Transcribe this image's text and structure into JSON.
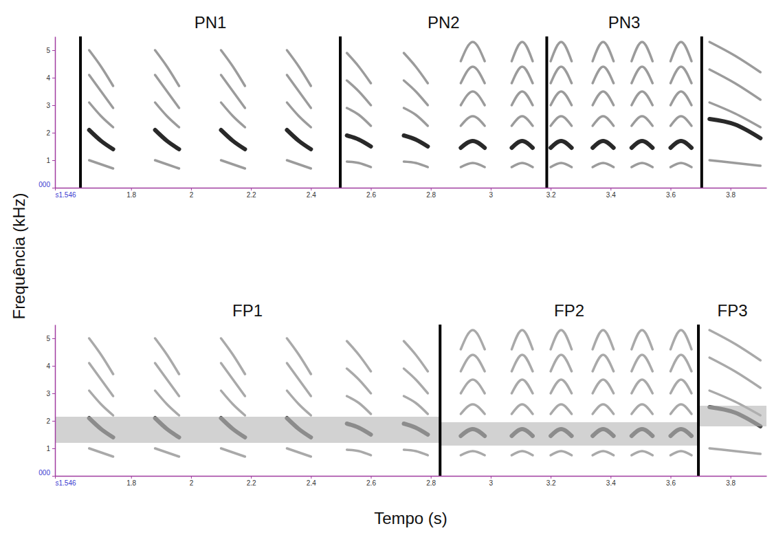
{
  "xlabel": "Tempo (s)",
  "ylabel": "Frequência (kHz)",
  "chart_data": [
    {
      "type": "spectrogram",
      "xlim": [
        1.546,
        3.92
      ],
      "ylim": [
        0,
        5.5
      ],
      "xticks": [
        {
          "value": 1.546,
          "label": "s1.546"
        },
        1.8,
        2,
        2.2,
        2.4,
        2.6,
        2.8,
        3,
        3.2,
        3.4,
        3.6,
        3.8
      ],
      "yticks": [
        {
          "value": 0,
          "label": "000"
        },
        1,
        2,
        3,
        4,
        5
      ],
      "lines": [
        1.631,
        2.498,
        3.187,
        3.704
      ],
      "segments": [
        {
          "label": "PN1",
          "start": 1.631,
          "end": 2.498
        },
        {
          "label": "PN2",
          "start": 2.498,
          "end": 3.187
        },
        {
          "label": "PN3",
          "start": 3.187,
          "end": 3.704
        }
      ],
      "notes": [
        {
          "t": [
            1.66,
            1.74
          ],
          "harmonics": [
            [
              1.0,
              0.85,
              0.7
            ],
            [
              2.1,
              1.7,
              1.4
            ],
            [
              3.1,
              2.6,
              2.2
            ],
            [
              4.1,
              3.5,
              2.9
            ],
            [
              5.0,
              4.4,
              3.7
            ]
          ]
        },
        {
          "t": [
            1.88,
            1.96
          ],
          "harmonics": [
            [
              1.0,
              0.85,
              0.7
            ],
            [
              2.1,
              1.7,
              1.4
            ],
            [
              3.1,
              2.6,
              2.2
            ],
            [
              4.1,
              3.5,
              2.9
            ],
            [
              5.0,
              4.4,
              3.7
            ]
          ]
        },
        {
          "t": [
            2.1,
            2.18
          ],
          "harmonics": [
            [
              1.0,
              0.85,
              0.7
            ],
            [
              2.1,
              1.7,
              1.4
            ],
            [
              3.1,
              2.6,
              2.2
            ],
            [
              4.1,
              3.5,
              2.9
            ],
            [
              5.0,
              4.4,
              3.7
            ]
          ]
        },
        {
          "t": [
            2.32,
            2.4
          ],
          "harmonics": [
            [
              1.0,
              0.85,
              0.7
            ],
            [
              2.1,
              1.7,
              1.4
            ],
            [
              3.1,
              2.6,
              2.2
            ],
            [
              4.1,
              3.5,
              2.9
            ],
            [
              5.0,
              4.4,
              3.7
            ]
          ]
        },
        {
          "t": [
            2.52,
            2.6
          ],
          "harmonics": [
            [
              0.95,
              0.9,
              0.75
            ],
            [
              1.9,
              1.75,
              1.5
            ],
            [
              2.9,
              2.65,
              2.25
            ],
            [
              3.9,
              3.5,
              3.0
            ],
            [
              4.9,
              4.4,
              3.8
            ]
          ]
        },
        {
          "t": [
            2.71,
            2.79
          ],
          "harmonics": [
            [
              0.95,
              0.9,
              0.75
            ],
            [
              1.9,
              1.75,
              1.5
            ],
            [
              2.9,
              2.65,
              2.25
            ],
            [
              3.9,
              3.5,
              3.0
            ],
            [
              4.9,
              4.4,
              3.8
            ]
          ]
        },
        {
          "t": [
            2.9,
            2.98
          ],
          "harmonics": [
            [
              0.75,
              0.9,
              0.75
            ],
            [
              1.45,
              1.7,
              1.45
            ],
            [
              2.25,
              2.6,
              2.25
            ],
            [
              3.0,
              3.5,
              3.0
            ],
            [
              3.8,
              4.4,
              3.8
            ],
            [
              4.6,
              5.3,
              4.6
            ]
          ]
        },
        {
          "t": [
            3.07,
            3.14
          ],
          "harmonics": [
            [
              0.75,
              0.9,
              0.75
            ],
            [
              1.45,
              1.7,
              1.45
            ],
            [
              2.25,
              2.6,
              2.25
            ],
            [
              3.0,
              3.5,
              3.0
            ],
            [
              3.8,
              4.4,
              3.8
            ],
            [
              4.6,
              5.3,
              4.6
            ]
          ]
        },
        {
          "t": [
            3.2,
            3.27
          ],
          "harmonics": [
            [
              0.75,
              0.9,
              0.75
            ],
            [
              1.45,
              1.7,
              1.45
            ],
            [
              2.25,
              2.6,
              2.25
            ],
            [
              3.0,
              3.5,
              3.0
            ],
            [
              3.8,
              4.4,
              3.8
            ],
            [
              4.6,
              5.3,
              4.6
            ]
          ]
        },
        {
          "t": [
            3.34,
            3.41
          ],
          "harmonics": [
            [
              0.75,
              0.9,
              0.75
            ],
            [
              1.45,
              1.7,
              1.45
            ],
            [
              2.25,
              2.6,
              2.25
            ],
            [
              3.0,
              3.5,
              3.0
            ],
            [
              3.8,
              4.4,
              3.8
            ],
            [
              4.6,
              5.3,
              4.6
            ]
          ]
        },
        {
          "t": [
            3.47,
            3.54
          ],
          "harmonics": [
            [
              0.75,
              0.9,
              0.75
            ],
            [
              1.45,
              1.7,
              1.45
            ],
            [
              2.25,
              2.6,
              2.25
            ],
            [
              3.0,
              3.5,
              3.0
            ],
            [
              3.8,
              4.4,
              3.8
            ],
            [
              4.6,
              5.3,
              4.6
            ]
          ]
        },
        {
          "t": [
            3.6,
            3.67
          ],
          "harmonics": [
            [
              0.75,
              0.9,
              0.75
            ],
            [
              1.45,
              1.7,
              1.45
            ],
            [
              2.25,
              2.6,
              2.25
            ],
            [
              3.0,
              3.5,
              3.0
            ],
            [
              3.8,
              4.4,
              3.8
            ],
            [
              4.6,
              5.3,
              4.6
            ]
          ]
        },
        {
          "t": [
            3.73,
            3.9
          ],
          "harmonics": [
            [
              1.0,
              0.9,
              0.8
            ],
            [
              2.5,
              2.3,
              1.8
            ],
            [
              3.1,
              2.7,
              2.2
            ],
            [
              4.3,
              3.8,
              3.2
            ],
            [
              5.3,
              4.8,
              4.2
            ]
          ]
        }
      ]
    },
    {
      "type": "spectrogram",
      "xlim": [
        1.546,
        3.92
      ],
      "ylim": [
        0,
        5.5
      ],
      "xticks": [
        {
          "value": 1.546,
          "label": "s1.546"
        },
        1.8,
        2,
        2.2,
        2.4,
        2.6,
        2.8,
        3,
        3.2,
        3.4,
        3.6,
        3.8
      ],
      "yticks": [
        {
          "value": 0,
          "label": "000"
        },
        1,
        2,
        3,
        4,
        5
      ],
      "lines": [
        2.831,
        3.693
      ],
      "segments": [
        {
          "label": "FP1",
          "start": 1.546,
          "end": 2.831,
          "band": [
            1.2,
            2.15
          ]
        },
        {
          "label": "FP2",
          "start": 2.831,
          "end": 3.693,
          "band": [
            1.1,
            1.95
          ]
        },
        {
          "label": "FP3",
          "start": 3.693,
          "end": 3.92,
          "band": [
            1.8,
            2.55
          ]
        }
      ],
      "notes": [
        {
          "t": [
            1.66,
            1.74
          ],
          "harmonics": [
            [
              1.0,
              0.85,
              0.7
            ],
            [
              2.1,
              1.7,
              1.4
            ],
            [
              3.1,
              2.6,
              2.2
            ],
            [
              4.1,
              3.5,
              2.9
            ],
            [
              5.0,
              4.4,
              3.7
            ]
          ]
        },
        {
          "t": [
            1.88,
            1.96
          ],
          "harmonics": [
            [
              1.0,
              0.85,
              0.7
            ],
            [
              2.1,
              1.7,
              1.4
            ],
            [
              3.1,
              2.6,
              2.2
            ],
            [
              4.1,
              3.5,
              2.9
            ],
            [
              5.0,
              4.4,
              3.7
            ]
          ]
        },
        {
          "t": [
            2.1,
            2.18
          ],
          "harmonics": [
            [
              1.0,
              0.85,
              0.7
            ],
            [
              2.1,
              1.7,
              1.4
            ],
            [
              3.1,
              2.6,
              2.2
            ],
            [
              4.1,
              3.5,
              2.9
            ],
            [
              5.0,
              4.4,
              3.7
            ]
          ]
        },
        {
          "t": [
            2.32,
            2.4
          ],
          "harmonics": [
            [
              1.0,
              0.85,
              0.7
            ],
            [
              2.1,
              1.7,
              1.4
            ],
            [
              3.1,
              2.6,
              2.2
            ],
            [
              4.1,
              3.5,
              2.9
            ],
            [
              5.0,
              4.4,
              3.7
            ]
          ]
        },
        {
          "t": [
            2.52,
            2.6
          ],
          "harmonics": [
            [
              0.95,
              0.9,
              0.75
            ],
            [
              1.9,
              1.75,
              1.5
            ],
            [
              2.9,
              2.65,
              2.25
            ],
            [
              3.9,
              3.5,
              3.0
            ],
            [
              4.9,
              4.4,
              3.8
            ]
          ]
        },
        {
          "t": [
            2.71,
            2.79
          ],
          "harmonics": [
            [
              0.95,
              0.9,
              0.75
            ],
            [
              1.9,
              1.75,
              1.5
            ],
            [
              2.9,
              2.65,
              2.25
            ],
            [
              3.9,
              3.5,
              3.0
            ],
            [
              4.9,
              4.4,
              3.8
            ]
          ]
        },
        {
          "t": [
            2.9,
            2.98
          ],
          "harmonics": [
            [
              0.75,
              0.9,
              0.75
            ],
            [
              1.45,
              1.7,
              1.45
            ],
            [
              2.25,
              2.6,
              2.25
            ],
            [
              3.0,
              3.5,
              3.0
            ],
            [
              3.8,
              4.4,
              3.8
            ],
            [
              4.6,
              5.3,
              4.6
            ]
          ]
        },
        {
          "t": [
            3.07,
            3.14
          ],
          "harmonics": [
            [
              0.75,
              0.9,
              0.75
            ],
            [
              1.45,
              1.7,
              1.45
            ],
            [
              2.25,
              2.6,
              2.25
            ],
            [
              3.0,
              3.5,
              3.0
            ],
            [
              3.8,
              4.4,
              3.8
            ],
            [
              4.6,
              5.3,
              4.6
            ]
          ]
        },
        {
          "t": [
            3.2,
            3.27
          ],
          "harmonics": [
            [
              0.75,
              0.9,
              0.75
            ],
            [
              1.45,
              1.7,
              1.45
            ],
            [
              2.25,
              2.6,
              2.25
            ],
            [
              3.0,
              3.5,
              3.0
            ],
            [
              3.8,
              4.4,
              3.8
            ],
            [
              4.6,
              5.3,
              4.6
            ]
          ]
        },
        {
          "t": [
            3.34,
            3.41
          ],
          "harmonics": [
            [
              0.75,
              0.9,
              0.75
            ],
            [
              1.45,
              1.7,
              1.45
            ],
            [
              2.25,
              2.6,
              2.25
            ],
            [
              3.0,
              3.5,
              3.0
            ],
            [
              3.8,
              4.4,
              3.8
            ],
            [
              4.6,
              5.3,
              4.6
            ]
          ]
        },
        {
          "t": [
            3.47,
            3.54
          ],
          "harmonics": [
            [
              0.75,
              0.9,
              0.75
            ],
            [
              1.45,
              1.7,
              1.45
            ],
            [
              2.25,
              2.6,
              2.25
            ],
            [
              3.0,
              3.5,
              3.0
            ],
            [
              3.8,
              4.4,
              3.8
            ],
            [
              4.6,
              5.3,
              4.6
            ]
          ]
        },
        {
          "t": [
            3.6,
            3.67
          ],
          "harmonics": [
            [
              0.75,
              0.9,
              0.75
            ],
            [
              1.45,
              1.7,
              1.45
            ],
            [
              2.25,
              2.6,
              2.25
            ],
            [
              3.0,
              3.5,
              3.0
            ],
            [
              3.8,
              4.4,
              3.8
            ],
            [
              4.6,
              5.3,
              4.6
            ]
          ]
        },
        {
          "t": [
            3.73,
            3.9
          ],
          "harmonics": [
            [
              1.0,
              0.9,
              0.8
            ],
            [
              2.5,
              2.3,
              1.8
            ],
            [
              3.1,
              2.7,
              2.2
            ],
            [
              4.3,
              3.8,
              3.2
            ],
            [
              5.3,
              4.8,
              4.2
            ]
          ]
        }
      ]
    }
  ]
}
